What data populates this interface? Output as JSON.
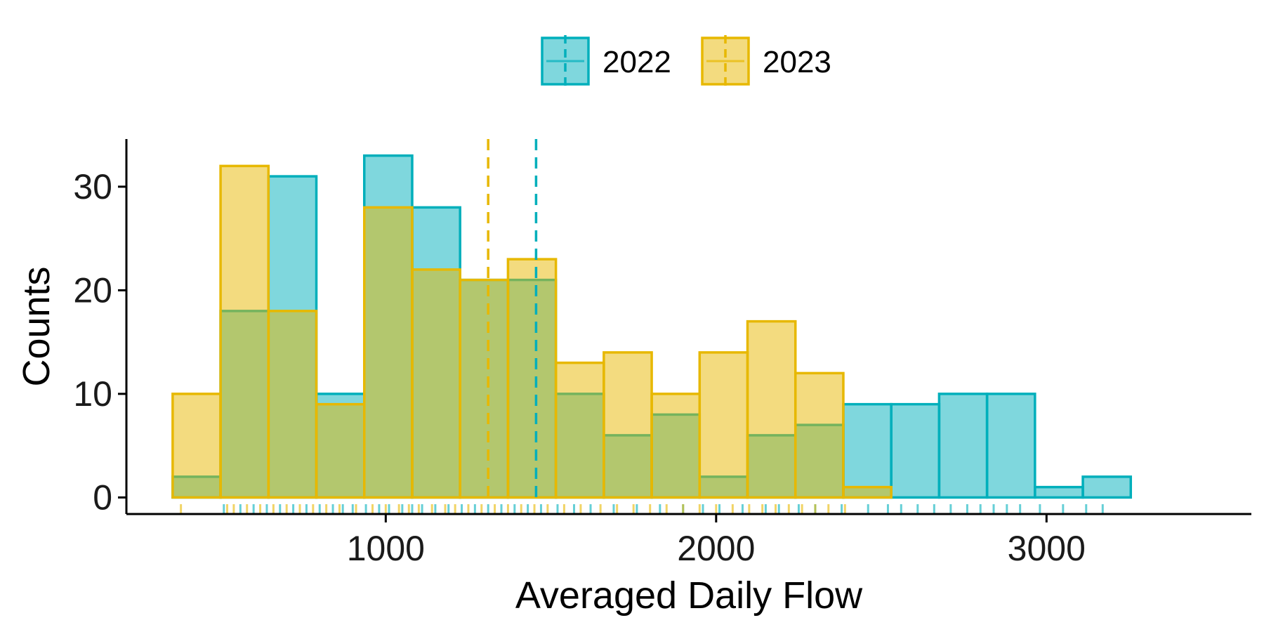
{
  "chart_data": {
    "type": "histogram",
    "xlabel": "Averaged Daily Flow",
    "ylabel": "Counts",
    "xlim": [
      215,
      3620
    ],
    "ylim": [
      -1.6,
      34.6
    ],
    "xticks": [
      1000,
      2000,
      3000
    ],
    "yticks": [
      0,
      10,
      20,
      30
    ],
    "legend": {
      "placement": "top-center"
    },
    "bins": {
      "edges": [
        355,
        500,
        645,
        790,
        935,
        1080,
        1225,
        1370,
        1515,
        1660,
        1805,
        1950,
        2095,
        2240,
        2385,
        2530,
        2675,
        2820,
        2965,
        3110,
        3255
      ],
      "note": ""
    },
    "series": [
      {
        "name": "2022",
        "color": "#00AFBB",
        "fill": "#80D7DD",
        "counts": [
          2,
          18,
          31,
          10,
          33,
          28,
          21,
          21,
          10,
          6,
          8,
          2,
          6,
          7,
          9,
          9,
          10,
          10,
          1,
          2
        ],
        "mean": 1455
      },
      {
        "name": "2023",
        "color": "#E7B800",
        "fill": "#F3DB80",
        "counts": [
          10,
          32,
          18,
          9,
          28,
          22,
          21,
          23,
          13,
          14,
          10,
          14,
          17,
          12,
          1,
          0,
          0,
          0,
          0,
          0
        ],
        "mean": 1310
      }
    ],
    "rug": {
      "2022": [
        510,
        560,
        600,
        640,
        680,
        720,
        760,
        800,
        840,
        870,
        900,
        940,
        980,
        1010,
        1050,
        1080,
        1110,
        1150,
        1190,
        1230,
        1270,
        1310,
        1350,
        1390,
        1430,
        1470,
        1520,
        1570,
        1620,
        1690,
        1760,
        1830,
        1900,
        1960,
        2010,
        2080,
        2150,
        2190,
        2250,
        2300,
        2380,
        2460,
        2520,
        2560,
        2610,
        2660,
        2710,
        2760,
        2800,
        2840,
        2880,
        2920,
        2980,
        3050,
        3120,
        3170
      ],
      "2023": [
        380,
        520,
        540,
        580,
        620,
        660,
        700,
        740,
        780,
        820,
        860,
        910,
        960,
        1000,
        1040,
        1070,
        1100,
        1140,
        1180,
        1210,
        1250,
        1290,
        1330,
        1370,
        1410,
        1450,
        1490,
        1540,
        1590,
        1650,
        1700,
        1750,
        1800,
        1850,
        1900,
        1950,
        2000,
        2050,
        2100,
        2140,
        2180,
        2220,
        2260,
        2300,
        2340,
        2390
      ]
    }
  }
}
